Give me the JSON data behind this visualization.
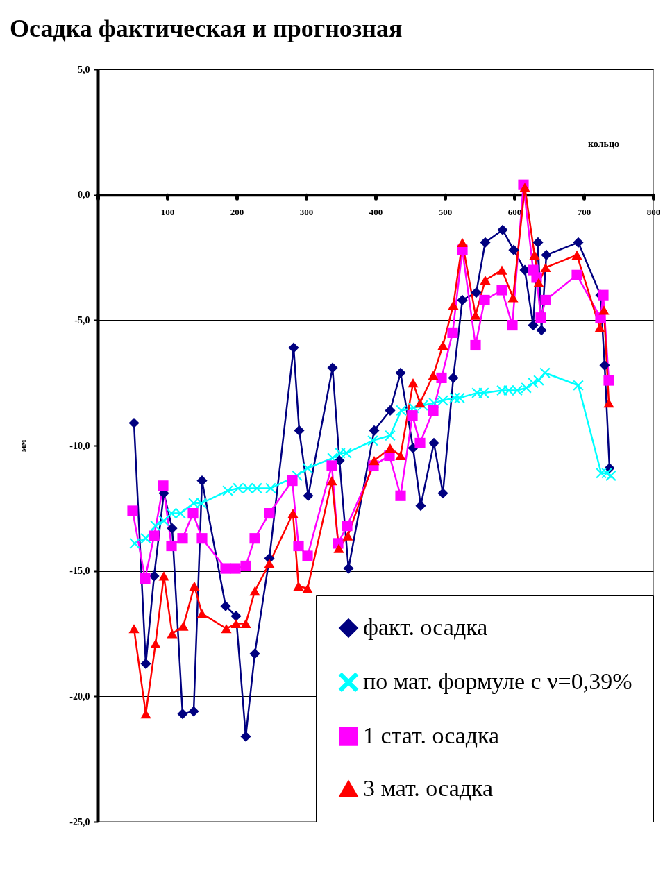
{
  "chart_data": {
    "type": "line",
    "title": "Осадка фактическая и прогнозная",
    "xlabel": "кольцо",
    "ylabel": "мм",
    "xlim": [
      0,
      800
    ],
    "xticks": [
      {
        "value": 0,
        "label": null
      },
      100,
      200,
      300,
      400,
      500,
      600,
      700,
      800
    ],
    "ylim": [
      -25,
      5
    ],
    "yticks": [
      {
        "value": -25,
        "label": "-25,0"
      },
      {
        "value": -20,
        "label": "-20,0"
      },
      {
        "value": -15,
        "label": "-15,0"
      },
      {
        "value": -10,
        "label": "-10,0"
      },
      {
        "value": -5,
        "label": "-5,0"
      },
      {
        "value": 0,
        "label": "0,0"
      },
      {
        "value": 5,
        "label": "5,0"
      }
    ],
    "grid": "y",
    "legend": "bottom right",
    "line_style": "solid",
    "series": [
      {
        "name": "факт. осадка",
        "color": "#000080",
        "marker": "diamond",
        "x": [
          52,
          69,
          81,
          95,
          107,
          122,
          138,
          150,
          184,
          199,
          213,
          226,
          247,
          282,
          290,
          303,
          338,
          348,
          361,
          398,
          421,
          436,
          454,
          465,
          484,
          497,
          512,
          525,
          545,
          558,
          583,
          599,
          615,
          627,
          634,
          639,
          646,
          692,
          724,
          730,
          737
        ],
        "values": [
          -9.1,
          -18.7,
          -15.2,
          -11.9,
          -13.3,
          -20.7,
          -20.6,
          -11.4,
          -16.4,
          -16.8,
          -21.6,
          -18.3,
          -14.5,
          -6.1,
          -9.4,
          -12.0,
          -6.9,
          -10.6,
          -14.9,
          -9.4,
          -8.6,
          -7.1,
          -10.1,
          -12.4,
          -9.9,
          -11.9,
          -7.3,
          -4.2,
          -3.9,
          -1.9,
          -1.4,
          -2.2,
          -3.0,
          -5.2,
          -1.9,
          -5.4,
          -2.4,
          -1.9,
          -4.0,
          -6.8,
          -10.9
        ]
      },
      {
        "name": "по мат. формуле с ν=0,39%",
        "color": "#00ffff",
        "marker": "cross",
        "x": [
          53,
          69,
          83,
          95,
          106,
          119,
          138,
          149,
          187,
          202,
          216,
          229,
          249,
          287,
          302,
          338,
          349,
          358,
          396,
          421,
          437,
          455,
          468,
          484,
          497,
          514,
          521,
          546,
          556,
          582,
          592,
          604,
          617,
          627,
          635,
          644,
          692,
          725,
          733,
          739
        ],
        "values": [
          -13.9,
          -13.7,
          -13.2,
          -13.0,
          -12.7,
          -12.7,
          -12.3,
          -12.3,
          -11.8,
          -11.7,
          -11.7,
          -11.7,
          -11.7,
          -11.2,
          -10.9,
          -10.5,
          -10.3,
          -10.3,
          -9.8,
          -9.6,
          -8.6,
          -8.5,
          -8.4,
          -8.3,
          -8.2,
          -8.1,
          -8.1,
          -7.9,
          -7.9,
          -7.8,
          -7.8,
          -7.8,
          -7.7,
          -7.5,
          -7.4,
          -7.1,
          -7.6,
          -11.1,
          -11.1,
          -11.2
        ]
      },
      {
        "name": "1 стат. осадка",
        "color": "#ff00ff",
        "marker": "square",
        "x": [
          50,
          68,
          81,
          94,
          106,
          122,
          137,
          150,
          184,
          198,
          213,
          226,
          247,
          280,
          289,
          302,
          337,
          346,
          359,
          397,
          420,
          436,
          453,
          464,
          483,
          495,
          511,
          525,
          544,
          557,
          582,
          597,
          613,
          627,
          632,
          638,
          645,
          690,
          724,
          728,
          736
        ],
        "values": [
          -12.6,
          -15.3,
          -13.6,
          -11.6,
          -14.0,
          -13.7,
          -12.7,
          -13.7,
          -14.9,
          -14.9,
          -14.8,
          -13.7,
          -12.7,
          -11.4,
          -14.0,
          -14.4,
          -10.8,
          -13.9,
          -13.2,
          -10.8,
          -10.4,
          -12.0,
          -8.8,
          -9.9,
          -8.6,
          -7.3,
          -5.5,
          -2.2,
          -6.0,
          -4.2,
          -3.8,
          -5.2,
          0.4,
          -3.0,
          -3.3,
          -4.9,
          -4.2,
          -3.2,
          -4.9,
          -4.0,
          -7.4
        ]
      },
      {
        "name": "3 мат. осадка",
        "color": "#ff0000",
        "marker": "triangle",
        "x": [
          52,
          69,
          83,
          95,
          107,
          123,
          139,
          150,
          185,
          199,
          213,
          226,
          247,
          281,
          289,
          302,
          337,
          347,
          360,
          398,
          421,
          436,
          454,
          464,
          483,
          497,
          512,
          525,
          544,
          558,
          582,
          598,
          615,
          629,
          635,
          645,
          690,
          723,
          729,
          736
        ],
        "values": [
          -17.3,
          -20.7,
          -17.9,
          -15.2,
          -17.5,
          -17.2,
          -15.6,
          -16.7,
          -17.3,
          -17.1,
          -17.1,
          -15.8,
          -14.7,
          -12.7,
          -15.6,
          -15.7,
          -11.4,
          -14.1,
          -13.6,
          -10.6,
          -10.1,
          -10.4,
          -7.5,
          -8.3,
          -7.2,
          -6.0,
          -4.4,
          -1.9,
          -4.8,
          -3.4,
          -3.0,
          -4.1,
          0.3,
          -2.4,
          -3.5,
          -2.9,
          -2.4,
          -5.3,
          -4.6,
          -8.3
        ]
      }
    ]
  }
}
